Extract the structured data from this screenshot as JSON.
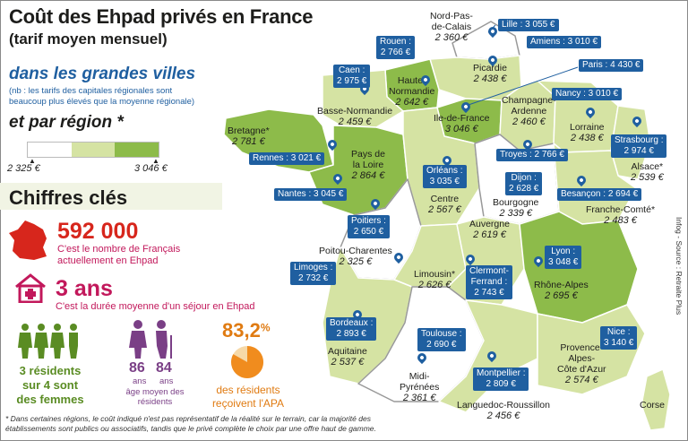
{
  "title": "Coût des Ehpad privés en France",
  "subtitle": "(tarif moyen mensuel)",
  "cities_heading": "dans les grandes villes",
  "cities_note": "(nb : les tarifs des capitales régionales  sont beaucoup plus élevés que la moyenne régionale)",
  "regions_heading": "et par région *",
  "legend": {
    "min": "2 325 €",
    "max": "3 046 €"
  },
  "key_heading": "Chiffres clés",
  "stats": {
    "residents_number": "592 000",
    "residents_desc": "C'est le nombre de Français actuellement en Ehpad",
    "stay_number": "3 ans",
    "stay_desc": "C'est la durée moyenne d'un séjour en Ehpad",
    "women_line1": "3 résidents",
    "women_line2": "sur 4 sont",
    "women_line3": "des femmes",
    "age_women": "86",
    "age_men": "84",
    "age_unit_w": "ans",
    "age_unit_m": "ans",
    "age_desc": "âge moyen des résidents",
    "apa_value": "83,2",
    "apa_pct": "%",
    "apa_desc": "des résidents reçoivent l'APA"
  },
  "footnote": "* Dans certaines régions, le coût indiqué n'est pas représentatif de la réalité sur le terrain, car la majorité des établissements sont publics ou associatifs, tandis que le privé complète le choix par une offre haut de gamme.",
  "source": "Infog - Source : Retraite Plus",
  "colors": {
    "dark": "#8dbb4a",
    "mid": "#d5e3a3",
    "light": "#ffffff",
    "city": "#1f5fa0"
  },
  "regions": [
    {
      "name": "Nord-Pas-de-Calais",
      "line1": "Nord-Pas-",
      "line2": "de-Calais",
      "value": "2 360 €"
    },
    {
      "name": "Picardie",
      "value": "2 438 €"
    },
    {
      "name": "Haute-Normandie",
      "line1": "Haute-",
      "line2": "Normandie",
      "value": "2 642 €"
    },
    {
      "name": "Basse-Normandie",
      "value": "2 459 €"
    },
    {
      "name": "Bretagne*",
      "value": "2 781 €"
    },
    {
      "name": "Pays de la Loire",
      "line1": "Pays de",
      "line2": "la Loire",
      "value": "2 864 €"
    },
    {
      "name": "Ile-de-France",
      "value": "3 046 €"
    },
    {
      "name": "Champagne-Ardenne",
      "line1": "Champagne-",
      "line2": "Ardenne",
      "value": "2 460 €"
    },
    {
      "name": "Lorraine",
      "value": "2 438 €"
    },
    {
      "name": "Alsace*",
      "value": "2 539 €"
    },
    {
      "name": "Centre",
      "value": "2 567 €"
    },
    {
      "name": "Bourgogne",
      "value": "2 339 €"
    },
    {
      "name": "Franche-Comté*",
      "value": "2 483 €"
    },
    {
      "name": "Auvergne",
      "value": "2 619 €"
    },
    {
      "name": "Poitou-Charentes",
      "value": "2 325 €"
    },
    {
      "name": "Limousin*",
      "value": "2 626 €"
    },
    {
      "name": "Rhône-Alpes",
      "value": "2 695 €"
    },
    {
      "name": "Aquitaine",
      "value": "2 537 €"
    },
    {
      "name": "Midi-Pyrénées",
      "line1": "Midi-",
      "line2": "Pyrénées",
      "value": "2 361 €"
    },
    {
      "name": "Languedoc-Roussillon",
      "value": "2 456 €"
    },
    {
      "name": "Provence-Alpes-Côte d'Azur",
      "line1": "Provence-",
      "line2": "Alpes-",
      "line3": "Côte d'Azur",
      "value": "2 574 €"
    },
    {
      "name": "Corse",
      "value": ""
    }
  ],
  "cities": [
    {
      "label": "Lille : 3 055 €"
    },
    {
      "label": "Amiens : 3 010 €"
    },
    {
      "label": "Paris : 4 430 €"
    },
    {
      "label": "Rouen :",
      "label2": "2 766 €"
    },
    {
      "label": "Caen :",
      "label2": "2 975 €"
    },
    {
      "label": "Nancy : 3 010 €"
    },
    {
      "label": "Strasbourg :",
      "label2": "2 974 €"
    },
    {
      "label": "Rennes : 3 021 €"
    },
    {
      "label": "Troyes : 2 766 €"
    },
    {
      "label": "Orléans :",
      "label2": "3 035 €"
    },
    {
      "label": "Dijon :",
      "label2": "2 628 €"
    },
    {
      "label": "Nantes : 3 045 €"
    },
    {
      "label": "Besançon : 2 694 €"
    },
    {
      "label": "Poitiers :",
      "label2": "2 650 €"
    },
    {
      "label": "Lyon :",
      "label2": "3 048 €"
    },
    {
      "label": "Limoges :",
      "label2": "2 732 €"
    },
    {
      "label": "Clermont-",
      "label2": "Ferrand :",
      "label3": "2 743 €"
    },
    {
      "label": "Bordeaux :",
      "label2": "2 893 €"
    },
    {
      "label": "Toulouse :",
      "label2": "2 690 €"
    },
    {
      "label": "Nice :",
      "label2": "3 140 €"
    },
    {
      "label": "Montpellier :",
      "label2": "2 809 €"
    }
  ]
}
